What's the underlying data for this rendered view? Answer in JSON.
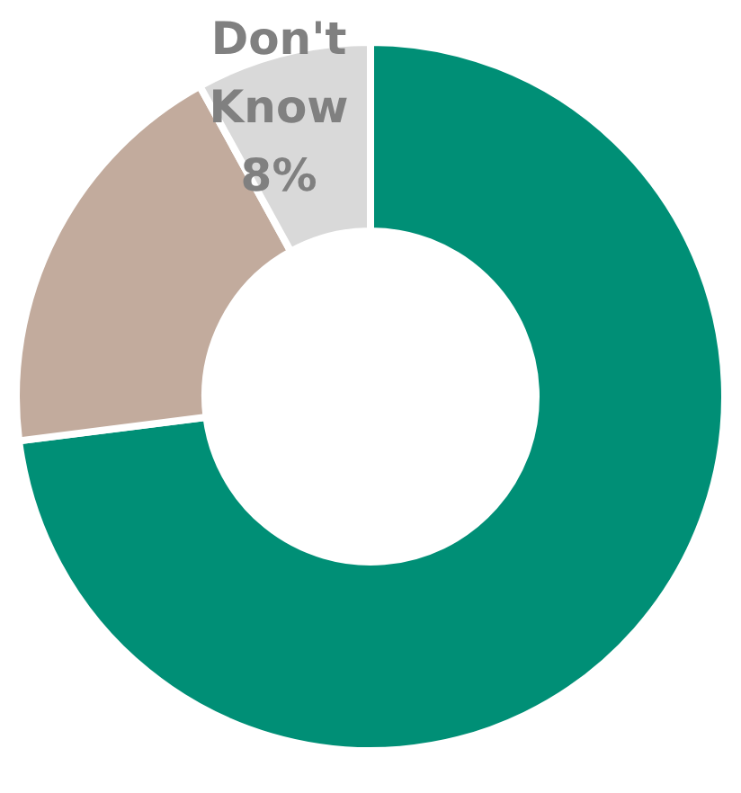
{
  "chart_data": {
    "type": "donut",
    "categories": [
      null,
      null,
      "Don't Know"
    ],
    "values": [
      73,
      19,
      8
    ],
    "colors": [
      "#008f76",
      "#c2ab9d",
      "#d9d9d9"
    ],
    "value_labels": [
      null,
      null,
      "8%"
    ]
  }
}
